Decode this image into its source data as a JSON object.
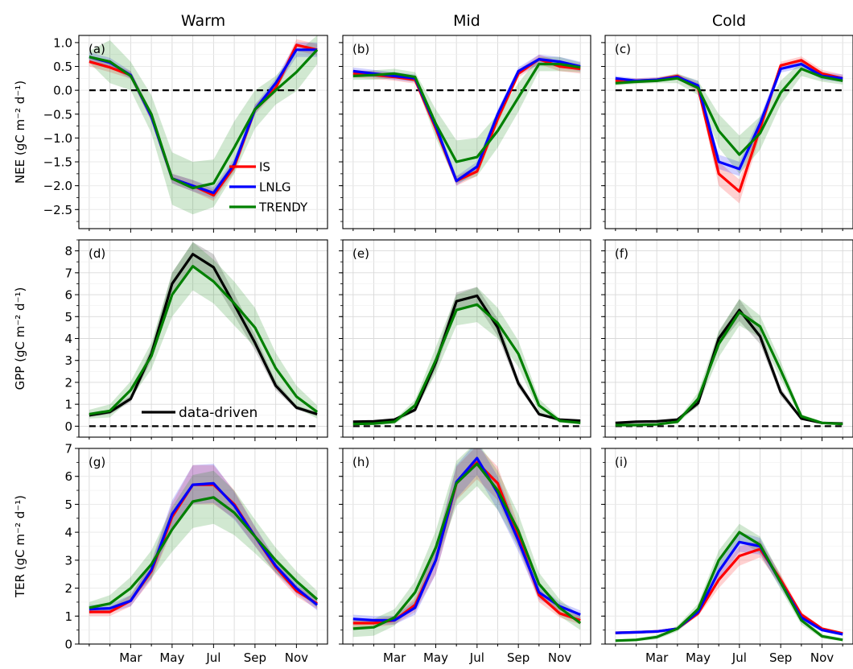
{
  "column_titles": [
    "Warm",
    "Mid",
    "Cold"
  ],
  "row_ylabels": [
    "NEE (gC m⁻² d⁻¹)",
    "GPP (gC m⁻² d⁻¹)",
    "TER (gC m⁻² d⁻¹)"
  ],
  "panel_labels": [
    "(a)",
    "(b)",
    "(c)",
    "(d)",
    "(e)",
    "(f)",
    "(g)",
    "(h)",
    "(i)"
  ],
  "xtick_labels": [
    "Mar",
    "May",
    "Jul",
    "Sep",
    "Nov"
  ],
  "xtick_months": [
    3,
    5,
    7,
    9,
    11
  ],
  "months": [
    1,
    2,
    3,
    4,
    5,
    6,
    7,
    8,
    9,
    10,
    11,
    12
  ],
  "colors": {
    "IS": "#ff0000",
    "LNLG": "#0000ff",
    "TRENDY": "#008000",
    "data-driven": "#000000"
  },
  "legend_nee": [
    "IS",
    "LNLG",
    "TRENDY"
  ],
  "legend_gpp": [
    "data-driven"
  ],
  "chart_data": [
    {
      "type": "line",
      "panel": "(a)",
      "title": "Warm",
      "ylabel": "NEE (gC m⁻² d⁻¹)",
      "ylim": [
        -2.9,
        1.15
      ],
      "yticks": [
        -2.5,
        -2.0,
        -1.5,
        -1.0,
        -0.5,
        0.0,
        0.5,
        1.0
      ],
      "xlim": [
        0.5,
        12.5
      ],
      "grid": true,
      "zero_line": true,
      "legend": "lower-center",
      "series": [
        {
          "name": "IS",
          "values": [
            0.6,
            0.48,
            0.32,
            -0.55,
            -1.85,
            -2.0,
            -2.2,
            -1.6,
            -0.4,
            0.05,
            0.95,
            0.85
          ],
          "band": [
            0.1,
            0.1,
            0.08,
            0.1,
            0.1,
            0.12,
            0.12,
            0.12,
            0.1,
            0.1,
            0.12,
            0.12
          ]
        },
        {
          "name": "LNLG",
          "values": [
            0.7,
            0.58,
            0.32,
            -0.55,
            -1.85,
            -2.0,
            -2.15,
            -1.55,
            -0.4,
            0.15,
            0.85,
            0.85
          ],
          "band": [
            0.1,
            0.1,
            0.08,
            0.1,
            0.1,
            0.12,
            0.12,
            0.12,
            0.1,
            0.1,
            0.15,
            0.15
          ]
        },
        {
          "name": "TRENDY",
          "values": [
            0.7,
            0.6,
            0.3,
            -0.5,
            -1.85,
            -2.05,
            -1.95,
            -1.2,
            -0.4,
            0.0,
            0.38,
            0.85
          ],
          "band": [
            0.12,
            0.45,
            0.3,
            0.4,
            0.55,
            0.55,
            0.5,
            0.55,
            0.4,
            0.3,
            0.4,
            0.3
          ]
        }
      ]
    },
    {
      "type": "line",
      "panel": "(b)",
      "title": "Mid",
      "ylim": [
        -2.9,
        1.15
      ],
      "xlim": [
        0.5,
        12.5
      ],
      "grid": true,
      "zero_line": true,
      "series": [
        {
          "name": "IS",
          "values": [
            0.35,
            0.32,
            0.28,
            0.22,
            -0.8,
            -1.9,
            -1.7,
            -0.6,
            0.35,
            0.65,
            0.5,
            0.45
          ],
          "band": [
            0.08,
            0.08,
            0.08,
            0.08,
            0.1,
            0.1,
            0.1,
            0.1,
            0.08,
            0.1,
            0.1,
            0.1
          ]
        },
        {
          "name": "LNLG",
          "values": [
            0.4,
            0.35,
            0.3,
            0.25,
            -0.75,
            -1.9,
            -1.6,
            -0.5,
            0.4,
            0.65,
            0.6,
            0.5
          ],
          "band": [
            0.08,
            0.08,
            0.08,
            0.08,
            0.1,
            0.1,
            0.1,
            0.1,
            0.08,
            0.1,
            0.1,
            0.1
          ]
        },
        {
          "name": "TRENDY",
          "values": [
            0.3,
            0.32,
            0.35,
            0.28,
            -0.7,
            -1.5,
            -1.4,
            -0.85,
            -0.15,
            0.55,
            0.55,
            0.48
          ],
          "band": [
            0.08,
            0.1,
            0.1,
            0.1,
            0.3,
            0.45,
            0.4,
            0.35,
            0.3,
            0.15,
            0.15,
            0.1
          ]
        }
      ]
    },
    {
      "type": "line",
      "panel": "(c)",
      "title": "Cold",
      "ylim": [
        -2.9,
        1.15
      ],
      "xlim": [
        0.5,
        12.5
      ],
      "grid": true,
      "zero_line": true,
      "series": [
        {
          "name": "IS",
          "values": [
            0.2,
            0.2,
            0.22,
            0.3,
            0.05,
            -1.75,
            -2.12,
            -0.8,
            0.52,
            0.63,
            0.35,
            0.25
          ],
          "band": [
            0.05,
            0.05,
            0.05,
            0.05,
            0.1,
            0.25,
            0.25,
            0.15,
            0.08,
            0.08,
            0.08,
            0.08
          ]
        },
        {
          "name": "LNLG",
          "values": [
            0.25,
            0.2,
            0.22,
            0.28,
            0.1,
            -1.5,
            -1.65,
            -0.7,
            0.45,
            0.55,
            0.3,
            0.25
          ],
          "band": [
            0.05,
            0.05,
            0.05,
            0.05,
            0.1,
            0.15,
            0.15,
            0.15,
            0.08,
            0.08,
            0.08,
            0.08
          ]
        },
        {
          "name": "TRENDY",
          "values": [
            0.15,
            0.18,
            0.2,
            0.25,
            0.05,
            -0.85,
            -1.35,
            -0.9,
            -0.05,
            0.45,
            0.28,
            0.2
          ],
          "band": [
            0.05,
            0.05,
            0.05,
            0.1,
            0.15,
            0.35,
            0.4,
            0.35,
            0.25,
            0.15,
            0.1,
            0.08
          ]
        }
      ]
    },
    {
      "type": "line",
      "panel": "(d)",
      "ylabel": "GPP (gC m⁻² d⁻¹)",
      "ylim": [
        -0.5,
        8.5
      ],
      "yticks": [
        0,
        1,
        2,
        3,
        4,
        5,
        6,
        7,
        8
      ],
      "xlim": [
        0.5,
        12.5
      ],
      "grid": true,
      "zero_line": true,
      "legend": "lower-center",
      "series": [
        {
          "name": "data-driven",
          "values": [
            0.5,
            0.65,
            1.25,
            3.3,
            6.5,
            7.85,
            7.25,
            5.55,
            3.8,
            1.85,
            0.85,
            0.55
          ],
          "band": [
            0.08,
            0.1,
            0.15,
            0.3,
            0.5,
            0.55,
            0.6,
            0.5,
            0.35,
            0.2,
            0.1,
            0.08
          ]
        },
        {
          "name": "TRENDY",
          "values": [
            0.55,
            0.7,
            1.65,
            3.2,
            6.0,
            7.3,
            6.6,
            5.6,
            4.5,
            2.65,
            1.35,
            0.65
          ],
          "band": [
            0.2,
            0.3,
            0.4,
            0.6,
            1.0,
            1.1,
            1.0,
            1.0,
            0.9,
            0.7,
            0.5,
            0.3
          ]
        }
      ]
    },
    {
      "type": "line",
      "panel": "(e)",
      "ylim": [
        -0.5,
        8.5
      ],
      "xlim": [
        0.5,
        12.5
      ],
      "grid": true,
      "zero_line": true,
      "series": [
        {
          "name": "data-driven",
          "values": [
            0.2,
            0.22,
            0.3,
            0.75,
            2.9,
            5.7,
            5.95,
            4.5,
            1.95,
            0.55,
            0.3,
            0.25
          ],
          "band": [
            0.05,
            0.05,
            0.05,
            0.1,
            0.3,
            0.4,
            0.4,
            0.4,
            0.2,
            0.08,
            0.05,
            0.05
          ]
        },
        {
          "name": "TRENDY",
          "values": [
            0.1,
            0.12,
            0.2,
            0.95,
            3.0,
            5.3,
            5.55,
            4.7,
            3.3,
            0.95,
            0.25,
            0.15
          ],
          "band": [
            0.05,
            0.08,
            0.1,
            0.25,
            0.6,
            0.7,
            0.8,
            0.7,
            0.6,
            0.3,
            0.1,
            0.05
          ]
        }
      ]
    },
    {
      "type": "line",
      "panel": "(f)",
      "ylim": [
        -0.5,
        8.5
      ],
      "xlim": [
        0.5,
        12.5
      ],
      "grid": true,
      "zero_line": true,
      "series": [
        {
          "name": "data-driven",
          "values": [
            0.15,
            0.2,
            0.22,
            0.3,
            1.05,
            4.0,
            5.3,
            4.1,
            1.55,
            0.35,
            0.15,
            0.12
          ],
          "band": [
            0.03,
            0.03,
            0.03,
            0.05,
            0.15,
            0.3,
            0.5,
            0.35,
            0.2,
            0.05,
            0.03,
            0.03
          ]
        },
        {
          "name": "TRENDY",
          "values": [
            0.05,
            0.05,
            0.08,
            0.2,
            1.25,
            3.75,
            5.2,
            4.55,
            2.55,
            0.45,
            0.15,
            0.1
          ],
          "band": [
            0.03,
            0.03,
            0.05,
            0.08,
            0.3,
            0.6,
            0.6,
            0.5,
            0.4,
            0.1,
            0.05,
            0.03
          ]
        }
      ]
    },
    {
      "type": "line",
      "panel": "(g)",
      "ylabel": "TER (gC m⁻² d⁻¹)",
      "ylim": [
        0,
        7
      ],
      "yticks": [
        0,
        1,
        2,
        3,
        4,
        5,
        6,
        7
      ],
      "xlim": [
        0.5,
        12.5
      ],
      "grid": true,
      "series": [
        {
          "name": "IS",
          "values": [
            1.15,
            1.15,
            1.55,
            2.6,
            4.55,
            5.7,
            5.7,
            5.0,
            3.85,
            2.75,
            1.9,
            1.45
          ],
          "band": [
            0.15,
            0.15,
            0.2,
            0.3,
            0.5,
            0.7,
            0.7,
            0.5,
            0.35,
            0.25,
            0.2,
            0.2
          ]
        },
        {
          "name": "LNLG",
          "values": [
            1.25,
            1.28,
            1.55,
            2.65,
            4.65,
            5.7,
            5.75,
            4.95,
            3.85,
            2.8,
            2.0,
            1.4
          ],
          "band": [
            0.15,
            0.15,
            0.2,
            0.3,
            0.5,
            0.7,
            0.7,
            0.5,
            0.35,
            0.25,
            0.2,
            0.2
          ]
        },
        {
          "name": "TRENDY",
          "values": [
            1.3,
            1.45,
            2.0,
            2.85,
            4.1,
            5.1,
            5.25,
            4.7,
            3.85,
            3.0,
            2.25,
            1.6
          ],
          "band": [
            0.2,
            0.3,
            0.4,
            0.5,
            0.8,
            0.95,
            0.95,
            0.8,
            0.6,
            0.45,
            0.35,
            0.3
          ]
        }
      ]
    },
    {
      "type": "line",
      "panel": "(h)",
      "ylim": [
        0,
        7
      ],
      "xlim": [
        0.5,
        12.5
      ],
      "grid": true,
      "series": [
        {
          "name": "IS",
          "values": [
            0.75,
            0.75,
            0.85,
            1.4,
            3.0,
            5.75,
            6.5,
            5.75,
            3.85,
            1.75,
            1.1,
            0.85
          ],
          "band": [
            0.15,
            0.15,
            0.15,
            0.25,
            0.5,
            0.6,
            0.6,
            0.6,
            0.4,
            0.25,
            0.15,
            0.15
          ]
        },
        {
          "name": "LNLG",
          "values": [
            0.9,
            0.85,
            0.85,
            1.3,
            3.0,
            5.8,
            6.65,
            5.4,
            3.7,
            1.85,
            1.35,
            1.05
          ],
          "band": [
            0.15,
            0.15,
            0.15,
            0.25,
            0.5,
            0.6,
            0.6,
            0.6,
            0.4,
            0.25,
            0.15,
            0.15
          ]
        },
        {
          "name": "TRENDY",
          "values": [
            0.55,
            0.6,
            0.95,
            1.85,
            3.45,
            5.75,
            6.45,
            5.5,
            4.05,
            2.15,
            1.3,
            0.75
          ],
          "band": [
            0.3,
            0.3,
            0.3,
            0.4,
            0.6,
            0.8,
            0.8,
            0.7,
            0.6,
            0.4,
            0.3,
            0.25
          ]
        }
      ]
    },
    {
      "type": "line",
      "panel": "(i)",
      "ylim": [
        0,
        7
      ],
      "xlim": [
        0.5,
        12.5
      ],
      "grid": true,
      "series": [
        {
          "name": "IS",
          "values": [
            0.4,
            0.42,
            0.45,
            0.55,
            1.1,
            2.3,
            3.15,
            3.4,
            2.3,
            1.05,
            0.55,
            0.38
          ],
          "band": [
            0.05,
            0.05,
            0.05,
            0.05,
            0.1,
            0.3,
            0.35,
            0.3,
            0.2,
            0.1,
            0.05,
            0.05
          ]
        },
        {
          "name": "LNLG",
          "values": [
            0.4,
            0.42,
            0.45,
            0.55,
            1.15,
            2.6,
            3.65,
            3.5,
            2.2,
            0.95,
            0.5,
            0.35
          ],
          "band": [
            0.05,
            0.05,
            0.05,
            0.05,
            0.1,
            0.3,
            0.35,
            0.3,
            0.2,
            0.1,
            0.05,
            0.05
          ]
        },
        {
          "name": "TRENDY",
          "values": [
            0.12,
            0.15,
            0.25,
            0.55,
            1.25,
            3.0,
            4.0,
            3.55,
            2.2,
            0.85,
            0.28,
            0.15
          ],
          "band": [
            0.05,
            0.05,
            0.08,
            0.1,
            0.2,
            0.35,
            0.3,
            0.3,
            0.25,
            0.15,
            0.08,
            0.05
          ]
        }
      ]
    }
  ]
}
